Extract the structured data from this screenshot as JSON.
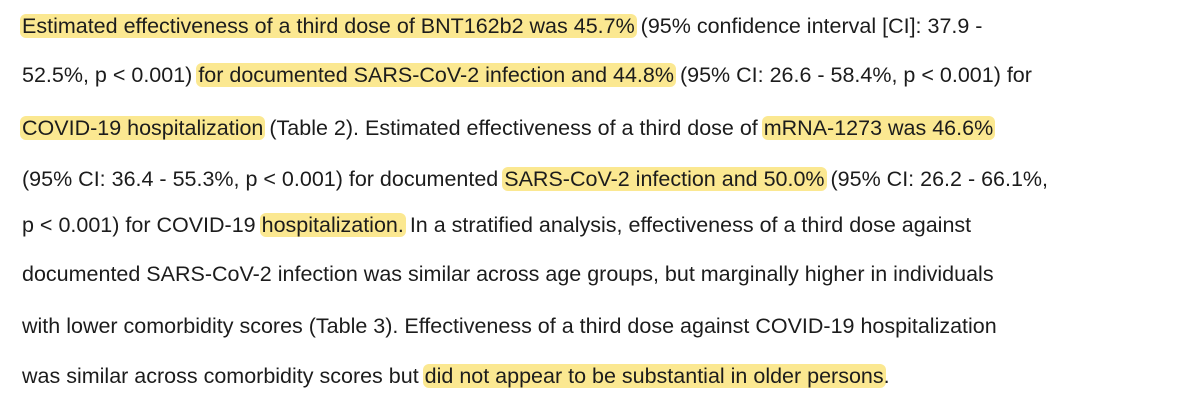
{
  "paragraph": {
    "lines": [
      [
        {
          "text": "Estimated effectiveness of a third dose of BNT162b2 was 45.7%",
          "hl": true
        },
        {
          "text": " (95% confidence interval [CI]: 37.9 -",
          "hl": false
        }
      ],
      [
        {
          "text": "52.5%, p < 0.001) ",
          "hl": false
        },
        {
          "text": "for documented SARS-CoV-2 infection and 44.8%",
          "hl": true
        },
        {
          "text": " (95% CI: 26.6 - 58.4%, p < 0.001) for",
          "hl": false
        }
      ],
      [
        {
          "text": "COVID-19 hospitalization",
          "hl": true
        },
        {
          "text": " (Table 2). Estimated effectiveness of a third dose of ",
          "hl": false
        },
        {
          "text": "mRNA-1273 was 46.6%",
          "hl": true
        }
      ],
      [
        {
          "text": "(95% CI: 36.4 - 55.3%, p < 0.001) for documented ",
          "hl": false
        },
        {
          "text": "SARS-CoV-2 infection and 50.0%",
          "hl": true
        },
        {
          "text": " (95% CI: 26.2 - 66.1%,",
          "hl": false
        }
      ],
      [
        {
          "text": "p < 0.001) for COVID-19 ",
          "hl": false
        },
        {
          "text": "hospitalization.",
          "hl": true
        },
        {
          "text": " In a stratified analysis, effectiveness of a third dose against",
          "hl": false
        }
      ],
      [
        {
          "text": "documented SARS-CoV-2 infection was similar across age groups, but marginally higher in individuals",
          "hl": false
        }
      ],
      [
        {
          "text": "with lower comorbidity scores (Table 3). Effectiveness of a third dose against COVID-19 hospitalization",
          "hl": false
        }
      ],
      [
        {
          "text": "was similar across comorbidity scores but ",
          "hl": false
        },
        {
          "text": "did not appear to be substantial in older persons",
          "hl": true
        },
        {
          "text": ".",
          "hl": false
        }
      ]
    ]
  },
  "colors": {
    "highlight": "#fbe891",
    "text": "#1c1c1c",
    "background": "#ffffff"
  }
}
